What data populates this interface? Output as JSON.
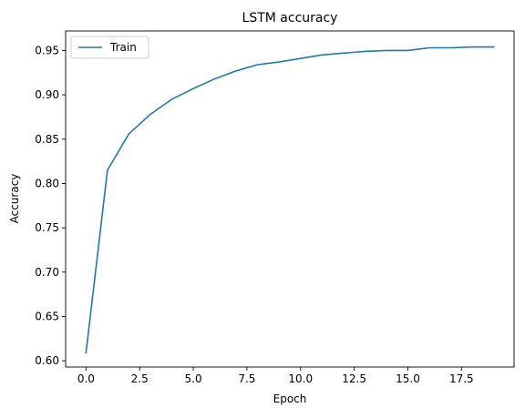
{
  "chart_data": {
    "type": "line",
    "title": "LSTM accuracy",
    "xlabel": "Epoch",
    "ylabel": "Accuracy",
    "xlim": [
      -0.95,
      19.95
    ],
    "ylim": [
      0.593,
      0.972
    ],
    "xticks": [
      0.0,
      2.5,
      5.0,
      7.5,
      10.0,
      12.5,
      15.0,
      17.5
    ],
    "xtick_labels": [
      "0.0",
      "2.5",
      "5.0",
      "7.5",
      "10.0",
      "12.5",
      "15.0",
      "17.5"
    ],
    "yticks": [
      0.6,
      0.65,
      0.7,
      0.75,
      0.8,
      0.85,
      0.9,
      0.95
    ],
    "ytick_labels": [
      "0.60",
      "0.65",
      "0.70",
      "0.75",
      "0.80",
      "0.85",
      "0.90",
      "0.95"
    ],
    "grid": false,
    "legend_position": "upper-left",
    "series": [
      {
        "name": "Train",
        "color": "#1f77b4",
        "x": [
          0,
          1,
          2,
          3,
          4,
          5,
          6,
          7,
          8,
          9,
          10,
          11,
          12,
          13,
          14,
          15,
          16,
          17,
          18,
          19
        ],
        "values": [
          0.609,
          0.815,
          0.856,
          0.878,
          0.895,
          0.907,
          0.918,
          0.927,
          0.934,
          0.937,
          0.941,
          0.945,
          0.947,
          0.949,
          0.95,
          0.95,
          0.953,
          0.953,
          0.954,
          0.954
        ]
      }
    ]
  }
}
